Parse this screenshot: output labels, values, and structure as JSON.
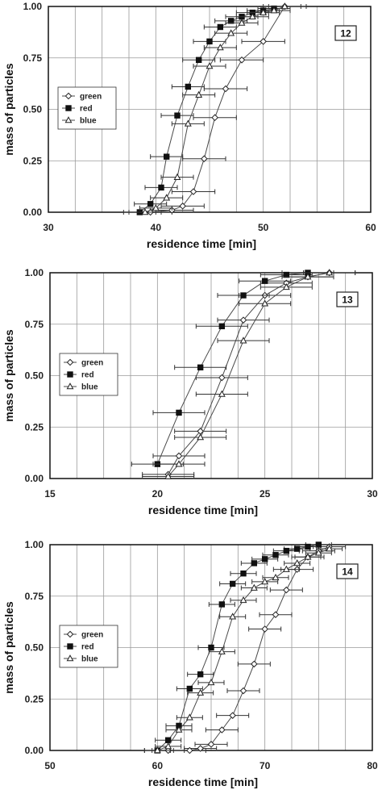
{
  "colors": {
    "grid": "#9a9a9a",
    "axis": "#111111",
    "series": "#4a4a4a",
    "background": "#ffffff"
  },
  "chart_data": [
    {
      "type": "line",
      "panel_label": "12",
      "xlabel": "residence time [min]",
      "ylabel": "mass of particles",
      "xlim": [
        30,
        60
      ],
      "ylim": [
        0,
        1
      ],
      "x_ticks": [
        30,
        40,
        50,
        60
      ],
      "x_tick_labels": [
        "30",
        "40",
        "50",
        "60"
      ],
      "y_ticks": [
        0,
        0.25,
        0.5,
        0.75,
        1
      ],
      "y_tick_labels": [
        "0.00",
        "0.25",
        "0.50",
        "0.75",
        "1.00"
      ],
      "grid": true,
      "legend_position": "left-middle",
      "series": [
        {
          "name": "green",
          "marker": "diamond",
          "xerr": 2,
          "x": [
            39.5,
            41.5,
            42.5,
            43.5,
            44.5,
            45.5,
            46.5,
            48,
            50,
            52
          ],
          "y": [
            0.0,
            0.01,
            0.03,
            0.1,
            0.26,
            0.46,
            0.6,
            0.74,
            0.83,
            1.0
          ]
        },
        {
          "name": "red",
          "marker": "square",
          "xerr": 1.5,
          "x": [
            38.5,
            39.5,
            40.5,
            41,
            42,
            43,
            44,
            45,
            46,
            47,
            48,
            49,
            50,
            51
          ],
          "y": [
            0.0,
            0.04,
            0.12,
            0.27,
            0.47,
            0.61,
            0.74,
            0.83,
            0.9,
            0.93,
            0.95,
            0.97,
            0.98,
            0.99
          ]
        },
        {
          "name": "blue",
          "marker": "triangle",
          "xerr": 1.5,
          "x": [
            39,
            40,
            41,
            42,
            43,
            44,
            45,
            46,
            47,
            48,
            49,
            50,
            51,
            52
          ],
          "y": [
            0.0,
            0.02,
            0.07,
            0.17,
            0.43,
            0.57,
            0.71,
            0.8,
            0.87,
            0.92,
            0.95,
            0.97,
            0.98,
            1.0
          ]
        }
      ]
    },
    {
      "type": "line",
      "panel_label": "13",
      "xlabel": "residence time [min]",
      "ylabel": "mass of particles",
      "xlim": [
        15,
        30
      ],
      "ylim": [
        0,
        1
      ],
      "x_ticks": [
        15,
        20,
        25,
        30
      ],
      "x_tick_labels": [
        "15",
        "20",
        "25",
        "30"
      ],
      "y_ticks": [
        0,
        0.25,
        0.5,
        0.75,
        1
      ],
      "y_tick_labels": [
        "0.00",
        "0.25",
        "0.50",
        "0.75",
        "1.00"
      ],
      "grid": true,
      "legend_position": "left-middle",
      "series": [
        {
          "name": "green",
          "marker": "diamond",
          "xerr": 1.2,
          "x": [
            20.5,
            21,
            22,
            23,
            24,
            25,
            26,
            27,
            28
          ],
          "y": [
            0.02,
            0.11,
            0.23,
            0.49,
            0.77,
            0.89,
            0.95,
            0.98,
            1.0
          ]
        },
        {
          "name": "red",
          "marker": "square",
          "xerr": 1.2,
          "x": [
            20,
            21,
            22,
            23,
            24,
            25,
            26,
            27
          ],
          "y": [
            0.07,
            0.32,
            0.54,
            0.74,
            0.89,
            0.96,
            0.99,
            1.0
          ]
        },
        {
          "name": "blue",
          "marker": "triangle",
          "xerr": 1.2,
          "x": [
            20.5,
            21,
            22,
            23,
            24,
            25,
            26,
            27,
            28
          ],
          "y": [
            0.01,
            0.07,
            0.2,
            0.41,
            0.67,
            0.85,
            0.93,
            0.98,
            1.0
          ]
        }
      ]
    },
    {
      "type": "line",
      "panel_label": "14",
      "xlabel": "residence time [min]",
      "ylabel": "mass of particles",
      "xlim": [
        50,
        80
      ],
      "ylim": [
        0,
        1
      ],
      "x_ticks": [
        50,
        60,
        70,
        80
      ],
      "x_tick_labels": [
        "50",
        "60",
        "70",
        "80"
      ],
      "y_ticks": [
        0,
        0.25,
        0.5,
        0.75,
        1
      ],
      "y_tick_labels": [
        "0.00",
        "0.25",
        "0.50",
        "0.75",
        "1.00"
      ],
      "grid": true,
      "legend_position": "left-middle",
      "series": [
        {
          "name": "green",
          "marker": "diamond",
          "xerr": 1.5,
          "x": [
            61,
            63,
            64,
            65,
            66,
            67,
            68,
            69,
            70,
            71,
            72,
            73,
            74,
            75,
            76
          ],
          "y": [
            0.0,
            0.0,
            0.01,
            0.03,
            0.1,
            0.17,
            0.29,
            0.42,
            0.59,
            0.66,
            0.78,
            0.88,
            0.94,
            0.97,
            0.99
          ]
        },
        {
          "name": "red",
          "marker": "square",
          "xerr": 1.2,
          "x": [
            60,
            61,
            62,
            63,
            64,
            65,
            66,
            67,
            68,
            69,
            70,
            71,
            72,
            73,
            74,
            75
          ],
          "y": [
            0.0,
            0.05,
            0.12,
            0.3,
            0.37,
            0.5,
            0.71,
            0.81,
            0.86,
            0.91,
            0.93,
            0.95,
            0.97,
            0.98,
            0.99,
            1.0
          ]
        },
        {
          "name": "blue",
          "marker": "triangle",
          "xerr": 1.2,
          "x": [
            60,
            61,
            62,
            63,
            64,
            65,
            66,
            67,
            68,
            69,
            70,
            71,
            72,
            73,
            74,
            75,
            76
          ],
          "y": [
            0.0,
            0.02,
            0.1,
            0.16,
            0.28,
            0.33,
            0.48,
            0.65,
            0.73,
            0.79,
            0.82,
            0.84,
            0.88,
            0.91,
            0.94,
            0.96,
            0.98
          ]
        }
      ]
    }
  ]
}
